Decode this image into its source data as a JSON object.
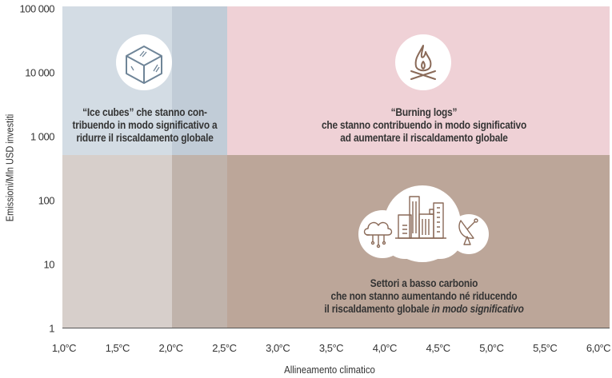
{
  "y_axis": {
    "label": "Emissioni/Mln USD investiti",
    "ticks": [
      "100 000",
      "10 000",
      "1 000",
      "100",
      "10",
      "1"
    ],
    "scale": "log"
  },
  "x_axis": {
    "label": "Allineamento climatico",
    "ticks": [
      "1,0°C",
      "1,5°C",
      "2,0°C",
      "2,5°C",
      "3,0°C",
      "3,5°C",
      "4,0°C",
      "4,5°C",
      "5,0°C",
      "5,5°C",
      "6,0°C"
    ]
  },
  "quadrants": {
    "ice_cubes": {
      "lines": [
        "“Ice cubes” che stanno con-",
        "tribuendo in modo significativo a",
        "ridurre il riscaldamento globale"
      ],
      "icon": "ice-cube-icon"
    },
    "burning_logs": {
      "lines": [
        "“Burning logs”",
        "che stanno contribuendo in modo significativo",
        "ad aumentare il riscaldamento globale"
      ],
      "icon": "campfire-icon"
    },
    "low_carbon": {
      "lines": [
        "Settori a basso carbonio",
        "che non stanno aumentando né riducendo"
      ],
      "line3_plain": "il riscaldamento globale ",
      "line3_italic": "in modo significativo",
      "icons": [
        "cloud-network-icon",
        "city-buildings-icon",
        "satellite-dish-icon"
      ]
    }
  },
  "colors": {
    "blue_light": "#d3dce4",
    "blue_dark": "#c1ccd7",
    "pink": "#efd1d6",
    "grey_light": "#d7cfcb",
    "grey_mid": "#c0b3ab",
    "brown": "#bca699",
    "icon_blue": "#6f8598",
    "icon_brown": "#8a6a58"
  }
}
